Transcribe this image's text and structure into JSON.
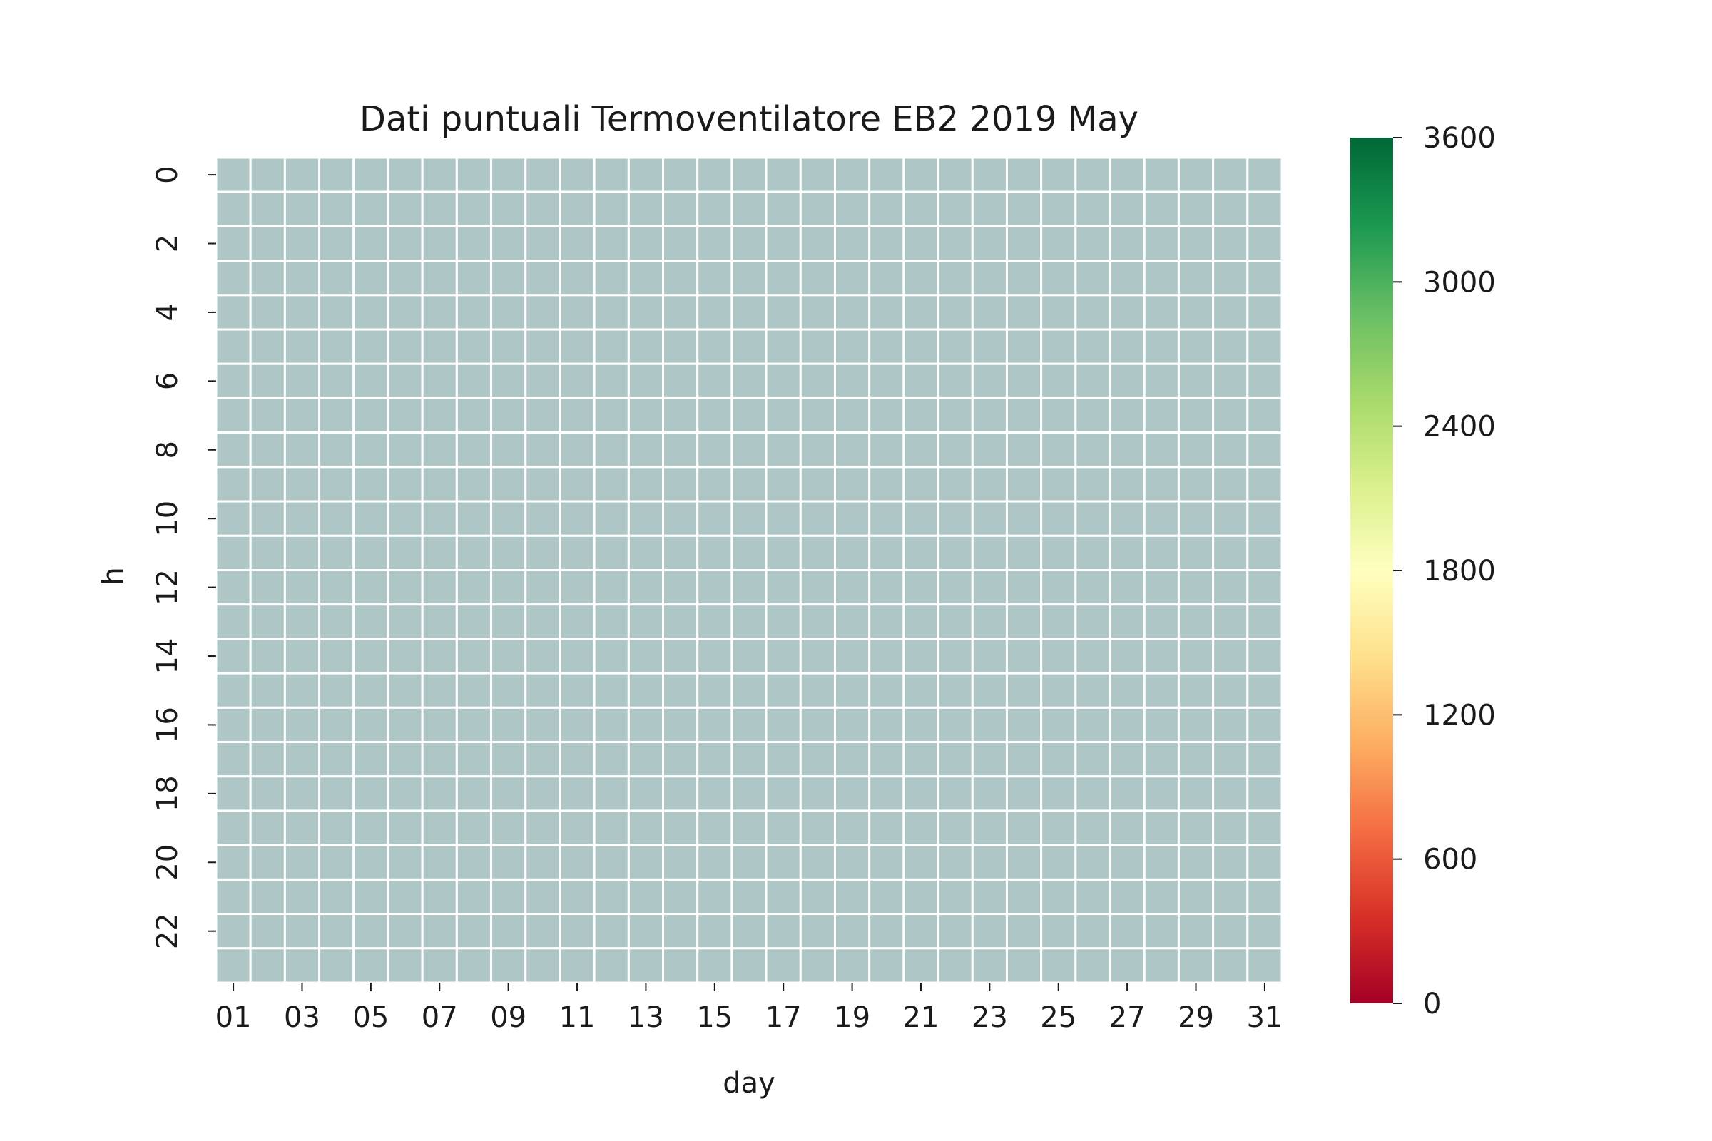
{
  "chart_data": {
    "type": "heatmap",
    "title": "Dati puntuali Termoventilatore EB2 2019 May",
    "xlabel": "day",
    "ylabel": "h",
    "x_categories": [
      "01",
      "02",
      "03",
      "04",
      "05",
      "06",
      "07",
      "08",
      "09",
      "10",
      "11",
      "12",
      "13",
      "14",
      "15",
      "16",
      "17",
      "18",
      "19",
      "20",
      "21",
      "22",
      "23",
      "24",
      "25",
      "26",
      "27",
      "28",
      "29",
      "30",
      "31"
    ],
    "x_tick_labels": [
      "01",
      "03",
      "05",
      "07",
      "09",
      "11",
      "13",
      "15",
      "17",
      "19",
      "21",
      "23",
      "25",
      "27",
      "29",
      "31"
    ],
    "y_categories": [
      "0",
      "1",
      "2",
      "3",
      "4",
      "5",
      "6",
      "7",
      "8",
      "9",
      "10",
      "11",
      "12",
      "13",
      "14",
      "15",
      "16",
      "17",
      "18",
      "19",
      "20",
      "21",
      "22",
      "23"
    ],
    "y_tick_labels": [
      "0",
      "2",
      "4",
      "6",
      "8",
      "10",
      "12",
      "14",
      "16",
      "18",
      "20",
      "22"
    ],
    "values": "all cells have no data (NaN)",
    "missing_color": "#aec6c6",
    "cell_border_color": "#ffffff",
    "colorbar": {
      "range": [
        0,
        3600
      ],
      "ticks": [
        "0",
        "600",
        "1200",
        "1800",
        "2400",
        "3000",
        "3600"
      ],
      "colormap": "RdYlGn",
      "stops": [
        "#a50026",
        "#d73027",
        "#f46d43",
        "#fdae61",
        "#fee08b",
        "#ffffbf",
        "#d9ef8b",
        "#a6d96a",
        "#66bd63",
        "#1a9850",
        "#006837"
      ]
    }
  }
}
